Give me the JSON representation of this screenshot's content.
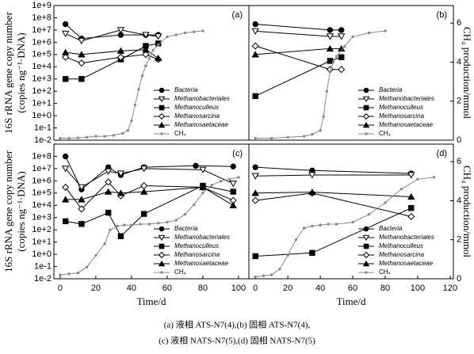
{
  "chart_data": [
    {
      "type": "line",
      "title": "(a)",
      "log_scale": true,
      "legend": "lower right",
      "ylabel": [
        "16S rRNA gene copy number",
        "(copies ng⁻¹·DNA)"
      ],
      "xlim": [
        -3.5,
        105.8
      ],
      "ylim": [
        0.01,
        1000000000.0
      ],
      "y2lim": [
        0,
        6.9
      ],
      "yticks": [
        {
          "value": 0.01,
          "label": "1e-2"
        },
        {
          "value": 0.1,
          "label": "1e-1"
        },
        {
          "value": 1,
          "label": "1e+0"
        },
        {
          "value": 10,
          "label": "1e+1"
        },
        {
          "value": 100,
          "label": "1e+2"
        },
        {
          "value": 1000,
          "label": "1e+3"
        },
        {
          "value": 10000.0,
          "label": "1e+4"
        },
        {
          "value": 100000.0,
          "label": "1e+5"
        },
        {
          "value": 1000000.0,
          "label": "1e+6"
        },
        {
          "value": 10000000.0,
          "label": "1e+7"
        },
        {
          "value": 100000000.0,
          "label": "1e+8"
        },
        {
          "value": 1000000000.0,
          "label": "1e+9"
        }
      ],
      "series": [
        {
          "name": "Bacteria",
          "marker": "circle",
          "filled": true,
          "color": "#000",
          "x": [
            3,
            12,
            34,
            48,
            55
          ],
          "values": [
            30000000.0,
            2000000.0,
            4000000.0,
            4000000.0,
            4000000.0
          ]
        },
        {
          "name": "Methanobacteriales",
          "marker": "triangle-down",
          "filled": false,
          "color": "#000",
          "x": [
            3,
            12,
            34,
            48,
            55
          ],
          "values": [
            5000000.0,
            1300000.0,
            10000000.0,
            4000000.0,
            3000000.0
          ]
        },
        {
          "name": "Methanoculleus",
          "marker": "square",
          "filled": true,
          "color": "#000",
          "x": [
            3,
            12,
            34,
            48,
            55
          ],
          "values": [
            1000,
            1000,
            40000.0,
            500000.0,
            800000.0
          ]
        },
        {
          "name": "Methanosarcina",
          "marker": "diamond",
          "filled": false,
          "color": "#000",
          "x": [
            3,
            12,
            34,
            48,
            55
          ],
          "values": [
            60000.0,
            20000.0,
            60000.0,
            100000.0,
            40000.0
          ]
        },
        {
          "name": "Methanosaetaceae",
          "marker": "triangle-up",
          "filled": true,
          "color": "#000",
          "x": [
            3,
            12,
            34,
            48,
            55
          ],
          "values": [
            150000.0,
            100000.0,
            200000.0,
            250000.0,
            50000.0
          ]
        },
        {
          "name": "CH₄",
          "marker": "dot",
          "filled": true,
          "color": "#888",
          "axis": "y2",
          "x": [
            0,
            5,
            10,
            15,
            20,
            25,
            30,
            35,
            38,
            40,
            42,
            44,
            46,
            48,
            50,
            52,
            55,
            60,
            65,
            70,
            75,
            80
          ],
          "values": [
            0.1,
            0.1,
            0.12,
            0.15,
            0.2,
            0.2,
            0.25,
            0.35,
            0.5,
            1.0,
            1.8,
            2.6,
            3.3,
            3.8,
            4.2,
            4.6,
            4.9,
            5.3,
            5.4,
            5.5,
            5.55,
            5.6
          ]
        }
      ]
    },
    {
      "type": "line",
      "title": "(b)",
      "log_scale": true,
      "legend": "lower right",
      "y2label": "CH₄ production/mmol",
      "xlim": [
        -4,
        122
      ],
      "ylim": [
        0.01,
        1000000000.0
      ],
      "y2lim": [
        0,
        6.9
      ],
      "y2ticks": [
        0,
        2,
        4,
        6
      ],
      "series": [
        {
          "name": "Bacteria",
          "marker": "circle",
          "filled": true,
          "color": "#000",
          "x": [
            0,
            46,
            53
          ],
          "values": [
            30000000.0,
            10000000.0,
            10000000.0
          ]
        },
        {
          "name": "Methanobacteriales",
          "marker": "triangle-down",
          "filled": false,
          "color": "#000",
          "x": [
            0,
            46,
            53
          ],
          "values": [
            8000000.0,
            3000000.0,
            3000000.0
          ]
        },
        {
          "name": "Methanoculleus",
          "marker": "square",
          "filled": true,
          "color": "#000",
          "x": [
            0,
            46,
            53
          ],
          "values": [
            40,
            30000.0,
            60000.0
          ]
        },
        {
          "name": "Methanosarcina",
          "marker": "diamond",
          "filled": false,
          "color": "#000",
          "x": [
            0,
            46,
            53
          ],
          "values": [
            500000.0,
            6000,
            6000
          ]
        },
        {
          "name": "Methanosaetaceae",
          "marker": "triangle-up",
          "filled": true,
          "color": "#000",
          "x": [
            0,
            46,
            53
          ],
          "values": [
            100000.0,
            300000.0,
            300000.0
          ]
        },
        {
          "name": "CH₄",
          "marker": "dot",
          "filled": true,
          "color": "#888",
          "axis": "y2",
          "x": [
            0,
            10,
            20,
            30,
            35,
            40,
            42,
            44,
            46,
            48,
            50,
            55,
            60,
            70,
            80
          ],
          "values": [
            0.1,
            0.1,
            0.15,
            0.2,
            0.3,
            0.5,
            1.2,
            2.5,
            3.5,
            4.0,
            4.3,
            4.8,
            5.3,
            5.5,
            5.6
          ]
        }
      ]
    },
    {
      "type": "line",
      "title": "(c)",
      "log_scale": true,
      "legend": "lower right",
      "ylabel": [
        "16S rRNA gene copy number",
        "(copies ng⁻¹·DNA)"
      ],
      "xlabel": "Time/d",
      "xlim": [
        -3.5,
        105.8
      ],
      "ylim": [
        0.01,
        1000000000.0
      ],
      "y2lim": [
        0,
        6.9
      ],
      "xticks": [
        0,
        20,
        40,
        60,
        80,
        100
      ],
      "yticks": [
        {
          "value": 0.01,
          "label": "1e-2"
        },
        {
          "value": 0.1,
          "label": "1e-1"
        },
        {
          "value": 1,
          "label": "1e+0"
        },
        {
          "value": 10,
          "label": "1e+1"
        },
        {
          "value": 100,
          "label": "1e+2"
        },
        {
          "value": 1000,
          "label": "1e+3"
        },
        {
          "value": 10000.0,
          "label": "1e+4"
        },
        {
          "value": 100000.0,
          "label": "1e+5"
        },
        {
          "value": 1000000.0,
          "label": "1e+6"
        },
        {
          "value": 10000000.0,
          "label": "1e+7"
        },
        {
          "value": 100000000.0,
          "label": "1e+8"
        }
      ],
      "series": [
        {
          "name": "Bacteria",
          "marker": "circle",
          "filled": true,
          "color": "#000",
          "x": [
            3,
            12,
            27,
            34,
            47,
            76,
            97
          ],
          "values": [
            100000000.0,
            200000.0,
            13000000.0,
            3000000.0,
            13000000.0,
            17000000.0,
            15000000.0
          ]
        },
        {
          "name": "Methanobacteriales",
          "marker": "triangle-down",
          "filled": false,
          "color": "#000",
          "x": [
            3,
            12,
            27,
            34,
            47,
            80,
            97
          ],
          "values": [
            10000000.0,
            300000.0,
            6000000.0,
            4000000.0,
            10000000.0,
            8000000.0,
            600000.0
          ]
        },
        {
          "name": "Methanoculleus",
          "marker": "square",
          "filled": true,
          "color": "#000",
          "x": [
            3,
            12,
            27,
            34,
            47,
            80,
            97
          ],
          "values": [
            500,
            300,
            2500,
            30,
            2000,
            400000.0,
            130000.0
          ]
        },
        {
          "name": "Methanosarcina",
          "marker": "diamond",
          "filled": false,
          "color": "#000",
          "x": [
            3,
            12,
            27,
            34,
            47,
            80,
            97
          ],
          "values": [
            300000.0,
            5000,
            800000.0,
            60000.0,
            400000.0,
            300000.0,
            25000.0
          ]
        },
        {
          "name": "Methanosaetaceae",
          "marker": "triangle-up",
          "filled": true,
          "color": "#000",
          "x": [
            3,
            12,
            27,
            34,
            47,
            80,
            97
          ],
          "values": [
            30000.0,
            30000.0,
            130000.0,
            100000.0,
            130000.0,
            300000.0,
            10000.0
          ]
        },
        {
          "name": "CH₄",
          "marker": "dot",
          "filled": true,
          "color": "#888",
          "axis": "y2",
          "x": [
            0,
            5,
            10,
            15,
            20,
            25,
            28,
            32,
            36,
            40,
            45,
            50,
            55,
            60,
            65,
            70,
            75,
            80,
            85,
            90,
            95,
            100
          ],
          "values": [
            0.2,
            0.25,
            0.3,
            0.6,
            1.2,
            1.8,
            2.5,
            2.7,
            2.75,
            2.75,
            2.8,
            2.8,
            2.85,
            2.9,
            3.0,
            3.3,
            3.8,
            4.4,
            4.8,
            5.0,
            5.1,
            5.2
          ]
        }
      ]
    },
    {
      "type": "line",
      "title": "(d)",
      "log_scale": true,
      "legend": "lower right",
      "y2label": "CH₄ production/mmol",
      "xlabel": "Time/d",
      "xlim": [
        -4,
        122
      ],
      "ylim": [
        0.01,
        1000000000.0
      ],
      "y2lim": [
        0,
        6.9
      ],
      "xticks": [
        0,
        20,
        40,
        60,
        80,
        100,
        120
      ],
      "y2ticks": [
        0,
        2,
        4,
        6
      ],
      "series": [
        {
          "name": "Bacteria",
          "marker": "circle",
          "filled": true,
          "color": "#000",
          "x": [
            0,
            35,
            96
          ],
          "values": [
            13000000.0,
            7000000.0,
            4000000.0
          ]
        },
        {
          "name": "Methanobacteriales",
          "marker": "triangle-down",
          "filled": false,
          "color": "#000",
          "x": [
            0,
            35,
            96
          ],
          "values": [
            2500000.0,
            3000000.0,
            3000000.0
          ]
        },
        {
          "name": "Methanoculleus",
          "marker": "square",
          "filled": true,
          "color": "#000",
          "x": [
            0,
            35,
            96
          ],
          "values": [
            0.7,
            1.3,
            6000
          ]
        },
        {
          "name": "Methanosarcina",
          "marker": "diamond",
          "filled": false,
          "color": "#000",
          "x": [
            0,
            35,
            96
          ],
          "values": [
            25000.0,
            100000.0,
            1200
          ]
        },
        {
          "name": "Methanosaetaceae",
          "marker": "triangle-up",
          "filled": true,
          "color": "#000",
          "x": [
            0,
            35,
            96
          ],
          "values": [
            100000.0,
            120000.0,
            50000.0
          ]
        },
        {
          "name": "CH₄",
          "marker": "dot",
          "filled": true,
          "color": "#888",
          "axis": "y2",
          "x": [
            0,
            5,
            10,
            15,
            20,
            25,
            30,
            35,
            40,
            45,
            50,
            60,
            70,
            80,
            90,
            100,
            110
          ],
          "values": [
            0.1,
            0.15,
            0.2,
            0.5,
            1.2,
            2.0,
            2.6,
            2.7,
            2.75,
            2.8,
            2.8,
            2.9,
            3.3,
            3.9,
            4.6,
            5.1,
            5.2
          ]
        }
      ]
    }
  ],
  "caption": [
    "(a) 液相 ATS-N7(4),(b) 固相 ATS-N7(4),",
    "(c) 液相 NATS-N7(5),(d) 固相 NATS-N7(5)"
  ]
}
